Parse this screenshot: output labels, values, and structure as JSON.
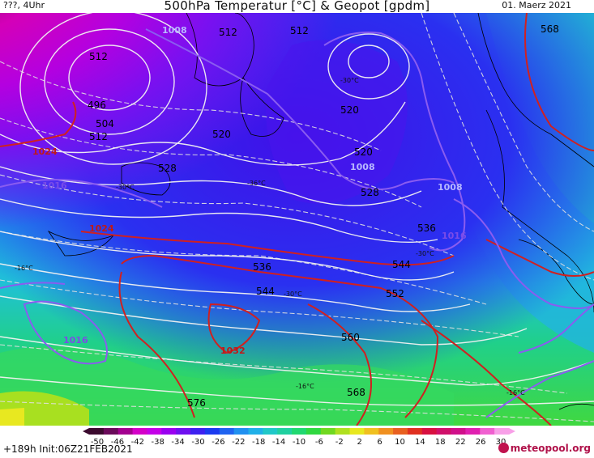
{
  "header": {
    "left": "???, 4Uhr",
    "title": "500hPa Temperatur [°C] & Geopot [gpdm]",
    "date": "01. Maerz 2021"
  },
  "footer": {
    "forecast_hour": "+189h",
    "init": "Init:06Z21FEB2021",
    "logo": "meteopool.org"
  },
  "colorbar": {
    "ticks": [
      "-50",
      "-46",
      "-42",
      "-38",
      "-34",
      "-30",
      "-26",
      "-22",
      "-18",
      "-14",
      "-10",
      "-6",
      "-2",
      "2",
      "6",
      "10",
      "14",
      "18",
      "22",
      "26",
      "30"
    ],
    "colors": [
      "#3b0a2e",
      "#6a0a5a",
      "#a3008f",
      "#d400c8",
      "#c400e8",
      "#9a00f0",
      "#6f10f0",
      "#3d20f0",
      "#1a3af0",
      "#1f63f0",
      "#2090f0",
      "#20b0e8",
      "#20c8c8",
      "#20d0a0",
      "#20d870",
      "#30d840",
      "#70d820",
      "#b0e020",
      "#e8e820",
      "#f0c020",
      "#f09020",
      "#e86020",
      "#e03020",
      "#d81040",
      "#d0106a",
      "#d0108a",
      "#e020b0",
      "#f060d0",
      "#f8a0e8"
    ]
  },
  "map": {
    "geopot_labels": [
      "512",
      "512",
      "512",
      "496",
      "504",
      "512",
      "520",
      "528",
      "520",
      "520",
      "528",
      "536",
      "536",
      "544",
      "544",
      "552",
      "560",
      "568",
      "576",
      "568"
    ],
    "pressure_labels": [
      "1024",
      "1016",
      "1024",
      "1032",
      "1016",
      "1008",
      "1008",
      "1016",
      "1008"
    ],
    "temp_labels": [
      "-30°C",
      "-30°C",
      "-36°C",
      "-16°C",
      "-30°C",
      "-30°C",
      "-16°C",
      "-16°C"
    ]
  }
}
